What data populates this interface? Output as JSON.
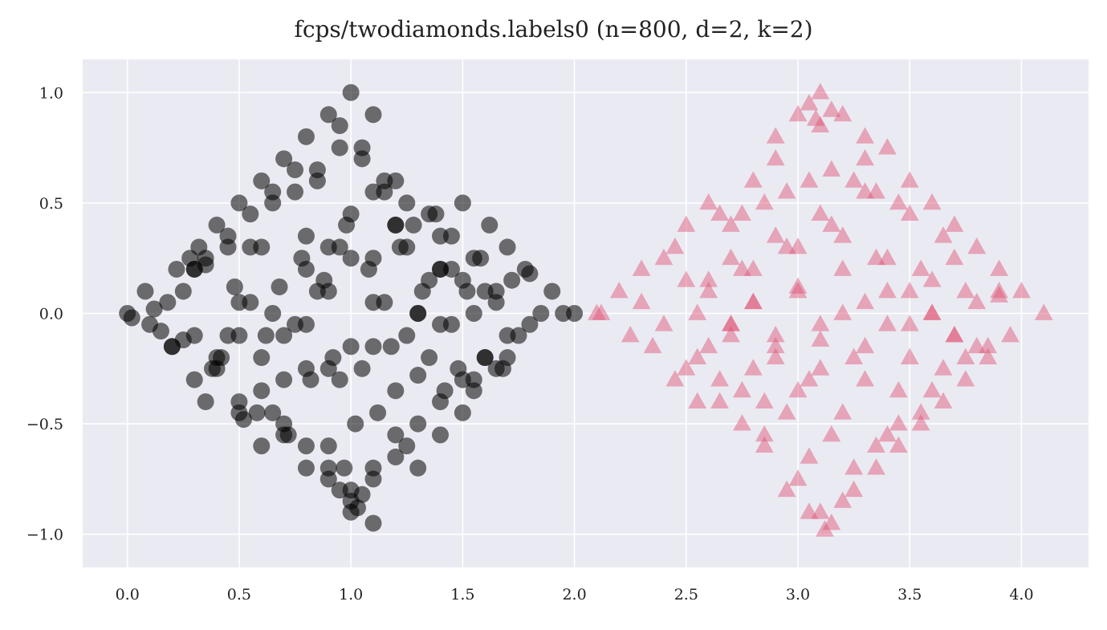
{
  "chart_data": {
    "type": "scatter",
    "title": "fcps/twodiamonds.labels0 (n=800, d=2, k=2)",
    "xlabel": "",
    "ylabel": "",
    "xlim": [
      -0.2,
      4.3
    ],
    "ylim": [
      -1.15,
      1.15
    ],
    "xticks": [
      0.0,
      0.5,
      1.0,
      1.5,
      2.0,
      2.5,
      3.0,
      3.5,
      4.0
    ],
    "xtick_labels": [
      "0.0",
      "0.5",
      "1.0",
      "1.5",
      "2.0",
      "2.5",
      "3.0",
      "3.5",
      "4.0"
    ],
    "yticks": [
      1.0,
      0.5,
      0.0,
      -0.5,
      -1.0
    ],
    "ytick_labels": [
      "1.0",
      "0.5",
      "0.0",
      "−0.5",
      "−1.0"
    ],
    "grid": true,
    "legend": "none",
    "background": "#eaeaf2",
    "series": [
      {
        "marker": "circle",
        "color": "#000000",
        "opacity": 0.55,
        "x": [
          0.0,
          0.02,
          0.08,
          0.1,
          0.12,
          0.15,
          0.18,
          0.2,
          0.22,
          0.25,
          0.28,
          0.3,
          0.32,
          0.35,
          0.38,
          0.4,
          0.42,
          0.45,
          0.48,
          0.5,
          0.52,
          0.55,
          0.58,
          0.6,
          0.62,
          0.65,
          0.68,
          0.7,
          0.72,
          0.75,
          0.78,
          0.8,
          0.82,
          0.85,
          0.88,
          0.9,
          0.92,
          0.95,
          0.98,
          1.0,
          1.02,
          1.05,
          1.08,
          1.1,
          1.12,
          1.15,
          1.18,
          1.2,
          1.22,
          1.25,
          1.28,
          1.3,
          1.32,
          1.35,
          1.38,
          1.4,
          1.42,
          1.45,
          1.48,
          1.5,
          1.52,
          1.55,
          1.58,
          1.6,
          1.62,
          1.65,
          1.68,
          1.7,
          1.72,
          1.75,
          1.78,
          1.8,
          1.85,
          1.9,
          1.95,
          2.0,
          0.25,
          0.3,
          0.35,
          0.4,
          0.45,
          0.5,
          0.55,
          0.6,
          0.65,
          0.7,
          0.75,
          0.8,
          0.85,
          0.9,
          0.95,
          1.0,
          1.05,
          1.1,
          1.15,
          1.2,
          1.25,
          1.3,
          1.35,
          1.4,
          1.45,
          1.5,
          1.55,
          1.6,
          1.65,
          1.7,
          0.2,
          0.3,
          0.4,
          0.5,
          0.6,
          0.7,
          0.8,
          0.9,
          1.0,
          1.1,
          1.2,
          1.3,
          1.4,
          1.5,
          1.6,
          1.7,
          1.8,
          0.6,
          0.7,
          0.8,
          0.9,
          1.0,
          1.1,
          1.2,
          1.3,
          1.4,
          0.5,
          0.6,
          0.7,
          0.8,
          0.9,
          1.0,
          1.1,
          1.2,
          1.3,
          1.4,
          1.5,
          0.8,
          0.9,
          1.0,
          1.1,
          1.2,
          0.9,
          1.0,
          1.1,
          0.95,
          1.05,
          0.97,
          1.03,
          0.3,
          0.45,
          0.55,
          0.65,
          0.75,
          0.85,
          0.95,
          1.05,
          1.15,
          1.25,
          1.35,
          1.45,
          1.55,
          1.65,
          0.35,
          0.5,
          0.65,
          0.8,
          0.95,
          1.1,
          1.25,
          1.4,
          1.55
        ],
        "y": [
          0.0,
          -0.02,
          0.1,
          -0.05,
          0.02,
          -0.08,
          0.05,
          -0.15,
          0.2,
          -0.12,
          0.25,
          -0.3,
          0.3,
          0.22,
          -0.25,
          0.4,
          -0.2,
          0.35,
          0.12,
          0.5,
          -0.48,
          0.3,
          -0.45,
          0.6,
          -0.1,
          0.55,
          0.12,
          0.7,
          -0.55,
          0.65,
          0.25,
          0.8,
          -0.3,
          0.6,
          0.15,
          0.9,
          -0.2,
          0.85,
          0.4,
          1.0,
          -0.5,
          0.75,
          0.2,
          0.9,
          -0.45,
          0.55,
          -0.15,
          0.6,
          0.3,
          -0.6,
          0.4,
          -0.28,
          0.1,
          -0.2,
          0.45,
          0.35,
          -0.35,
          0.2,
          -0.25,
          0.5,
          0.1,
          -0.3,
          0.25,
          -0.2,
          0.4,
          0.05,
          -0.25,
          0.3,
          0.15,
          -0.1,
          0.2,
          0.18,
          0.0,
          0.1,
          0.0,
          0.0,
          0.1,
          -0.1,
          0.25,
          -0.2,
          0.3,
          -0.4,
          0.45,
          -0.35,
          0.5,
          -0.55,
          0.55,
          -0.6,
          0.65,
          -0.7,
          0.75,
          -0.8,
          0.7,
          -0.75,
          0.6,
          -0.65,
          0.5,
          -0.5,
          0.45,
          -0.4,
          0.35,
          -0.3,
          0.25,
          -0.2,
          0.1,
          -0.1,
          -0.15,
          0.2,
          -0.25,
          0.05,
          0.3,
          -0.1,
          0.35,
          -0.25,
          0.25,
          -0.15,
          0.4,
          0.0,
          -0.05,
          0.15,
          0.1,
          -0.2,
          -0.05,
          -0.2,
          -0.3,
          -0.05,
          0.1,
          -0.15,
          0.05,
          -0.35,
          0.0,
          0.2,
          -0.45,
          -0.6,
          -0.5,
          -0.7,
          -0.6,
          -0.85,
          -0.7,
          -0.55,
          -0.7,
          -0.55,
          -0.45,
          0.2,
          0.3,
          0.45,
          0.55,
          0.4,
          -0.75,
          -0.9,
          -0.95,
          -0.8,
          -0.82,
          -0.7,
          -0.88,
          0.2,
          -0.1,
          0.05,
          0.0,
          -0.05,
          0.1,
          -0.3,
          -0.25,
          0.05,
          -0.1,
          0.15,
          -0.05,
          0.0,
          -0.25,
          -0.4,
          -0.1,
          -0.45,
          -0.25,
          0.3,
          0.25,
          0.3,
          0.2,
          -0.35
        ]
      },
      {
        "marker": "triangle",
        "color": "#e05070",
        "opacity": 0.45,
        "x": [
          2.1,
          2.12,
          2.2,
          2.25,
          2.3,
          2.35,
          2.4,
          2.45,
          2.5,
          2.55,
          2.6,
          2.65,
          2.7,
          2.75,
          2.8,
          2.85,
          2.9,
          2.95,
          3.0,
          3.05,
          3.1,
          3.15,
          3.2,
          3.25,
          3.3,
          3.35,
          3.4,
          3.45,
          3.5,
          3.55,
          3.6,
          3.65,
          3.7,
          3.75,
          3.8,
          3.85,
          3.9,
          3.95,
          4.0,
          4.1,
          2.3,
          2.4,
          2.5,
          2.6,
          2.7,
          2.8,
          2.9,
          3.0,
          3.1,
          3.2,
          3.3,
          3.4,
          3.5,
          3.6,
          3.7,
          3.8,
          3.9,
          2.45,
          2.55,
          2.65,
          2.75,
          2.85,
          2.95,
          3.05,
          3.15,
          3.25,
          3.35,
          3.45,
          3.55,
          3.65,
          3.75,
          2.6,
          2.7,
          2.8,
          2.9,
          3.0,
          3.1,
          3.2,
          3.3,
          3.4,
          3.5,
          3.6,
          2.75,
          2.85,
          2.95,
          3.05,
          3.15,
          3.25,
          3.35,
          3.45,
          2.9,
          3.0,
          3.1,
          3.2,
          3.3,
          3.05,
          3.1,
          3.15,
          3.08,
          3.12,
          2.5,
          2.6,
          2.7,
          2.8,
          2.9,
          3.0,
          3.1,
          3.2,
          3.3,
          3.4,
          3.5,
          3.6,
          3.7,
          3.8,
          3.9,
          2.55,
          2.65,
          2.75,
          2.85,
          2.95,
          3.05,
          3.15,
          3.25,
          3.35,
          3.45,
          3.55,
          3.65,
          3.75,
          3.85,
          2.7,
          2.8,
          2.9,
          3.0,
          3.1,
          3.2,
          3.3,
          3.4,
          3.5,
          3.6,
          3.7
        ],
        "y": [
          0.0,
          0.0,
          0.1,
          -0.1,
          0.2,
          -0.15,
          0.25,
          -0.3,
          0.4,
          -0.4,
          0.5,
          -0.4,
          0.4,
          -0.5,
          0.6,
          -0.6,
          0.7,
          -0.8,
          0.9,
          -0.9,
          1.0,
          -0.95,
          0.9,
          -0.8,
          0.8,
          -0.7,
          0.75,
          -0.6,
          0.6,
          -0.5,
          0.5,
          -0.4,
          0.4,
          -0.3,
          0.3,
          -0.2,
          0.2,
          -0.1,
          0.1,
          0.0,
          0.05,
          -0.05,
          0.15,
          -0.15,
          0.25,
          -0.25,
          0.35,
          -0.35,
          0.45,
          -0.45,
          0.55,
          -0.55,
          0.45,
          -0.35,
          0.25,
          -0.15,
          0.1,
          0.3,
          -0.2,
          0.45,
          -0.35,
          0.5,
          -0.45,
          0.6,
          -0.55,
          0.6,
          -0.6,
          0.5,
          -0.45,
          0.35,
          -0.2,
          0.1,
          -0.05,
          0.2,
          -0.15,
          0.3,
          -0.25,
          0.35,
          -0.3,
          0.25,
          -0.2,
          0.15,
          0.45,
          -0.55,
          0.55,
          -0.65,
          0.65,
          -0.7,
          0.55,
          -0.5,
          0.8,
          -0.75,
          0.85,
          -0.85,
          0.7,
          0.95,
          -0.9,
          0.92,
          0.88,
          -0.98,
          -0.25,
          0.15,
          -0.1,
          0.05,
          -0.2,
          0.12,
          -0.12,
          0.2,
          -0.15,
          0.1,
          -0.05,
          0.0,
          -0.1,
          0.05,
          0.08,
          0.0,
          -0.3,
          0.2,
          -0.4,
          0.3,
          -0.3,
          0.4,
          -0.2,
          0.25,
          -0.35,
          0.2,
          -0.25,
          0.1,
          -0.15,
          -0.05,
          0.05,
          -0.1,
          0.1,
          -0.05,
          0.0,
          0.05,
          -0.05,
          0.1,
          0.0,
          -0.1
        ]
      }
    ]
  }
}
